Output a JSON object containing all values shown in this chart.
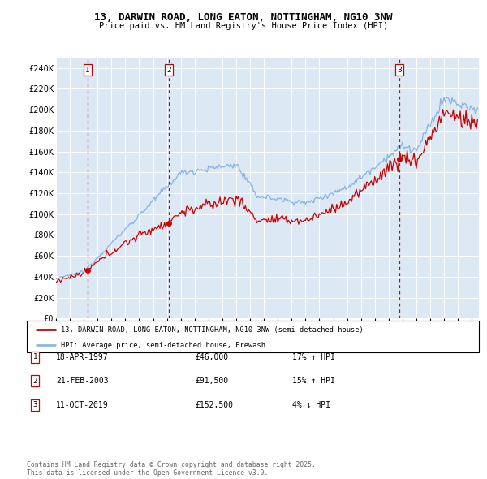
{
  "title": "13, DARWIN ROAD, LONG EATON, NOTTINGHAM, NG10 3NW",
  "subtitle": "Price paid vs. HM Land Registry's House Price Index (HPI)",
  "background_color": "#dce9f5",
  "plot_bg_color": "#dce9f5",
  "ylim": [
    0,
    250000
  ],
  "yticks": [
    0,
    20000,
    40000,
    60000,
    80000,
    100000,
    120000,
    140000,
    160000,
    180000,
    200000,
    220000,
    240000
  ],
  "sale_years": [
    1997.29,
    2003.13,
    2019.78
  ],
  "sale_prices": [
    46000,
    91500,
    152500
  ],
  "sale_labels": [
    "1",
    "2",
    "3"
  ],
  "legend_label_red": "13, DARWIN ROAD, LONG EATON, NOTTINGHAM, NG10 3NW (semi-detached house)",
  "legend_label_blue": "HPI: Average price, semi-detached house, Erewash",
  "table_rows": [
    {
      "label": "1",
      "date": "18-APR-1997",
      "price": "£46,000",
      "hpi": "17% ↑ HPI"
    },
    {
      "label": "2",
      "date": "21-FEB-2003",
      "price": "£91,500",
      "hpi": "15% ↑ HPI"
    },
    {
      "label": "3",
      "date": "11-OCT-2019",
      "price": "£152,500",
      "hpi": "4% ↓ HPI"
    }
  ],
  "footer": "Contains HM Land Registry data © Crown copyright and database right 2025.\nThis data is licensed under the Open Government Licence v3.0.",
  "red_color": "#cc0000",
  "blue_color": "#7aaadd",
  "dashed_color": "#cc0000",
  "xlim_start": 1995.0,
  "xlim_end": 2025.5
}
